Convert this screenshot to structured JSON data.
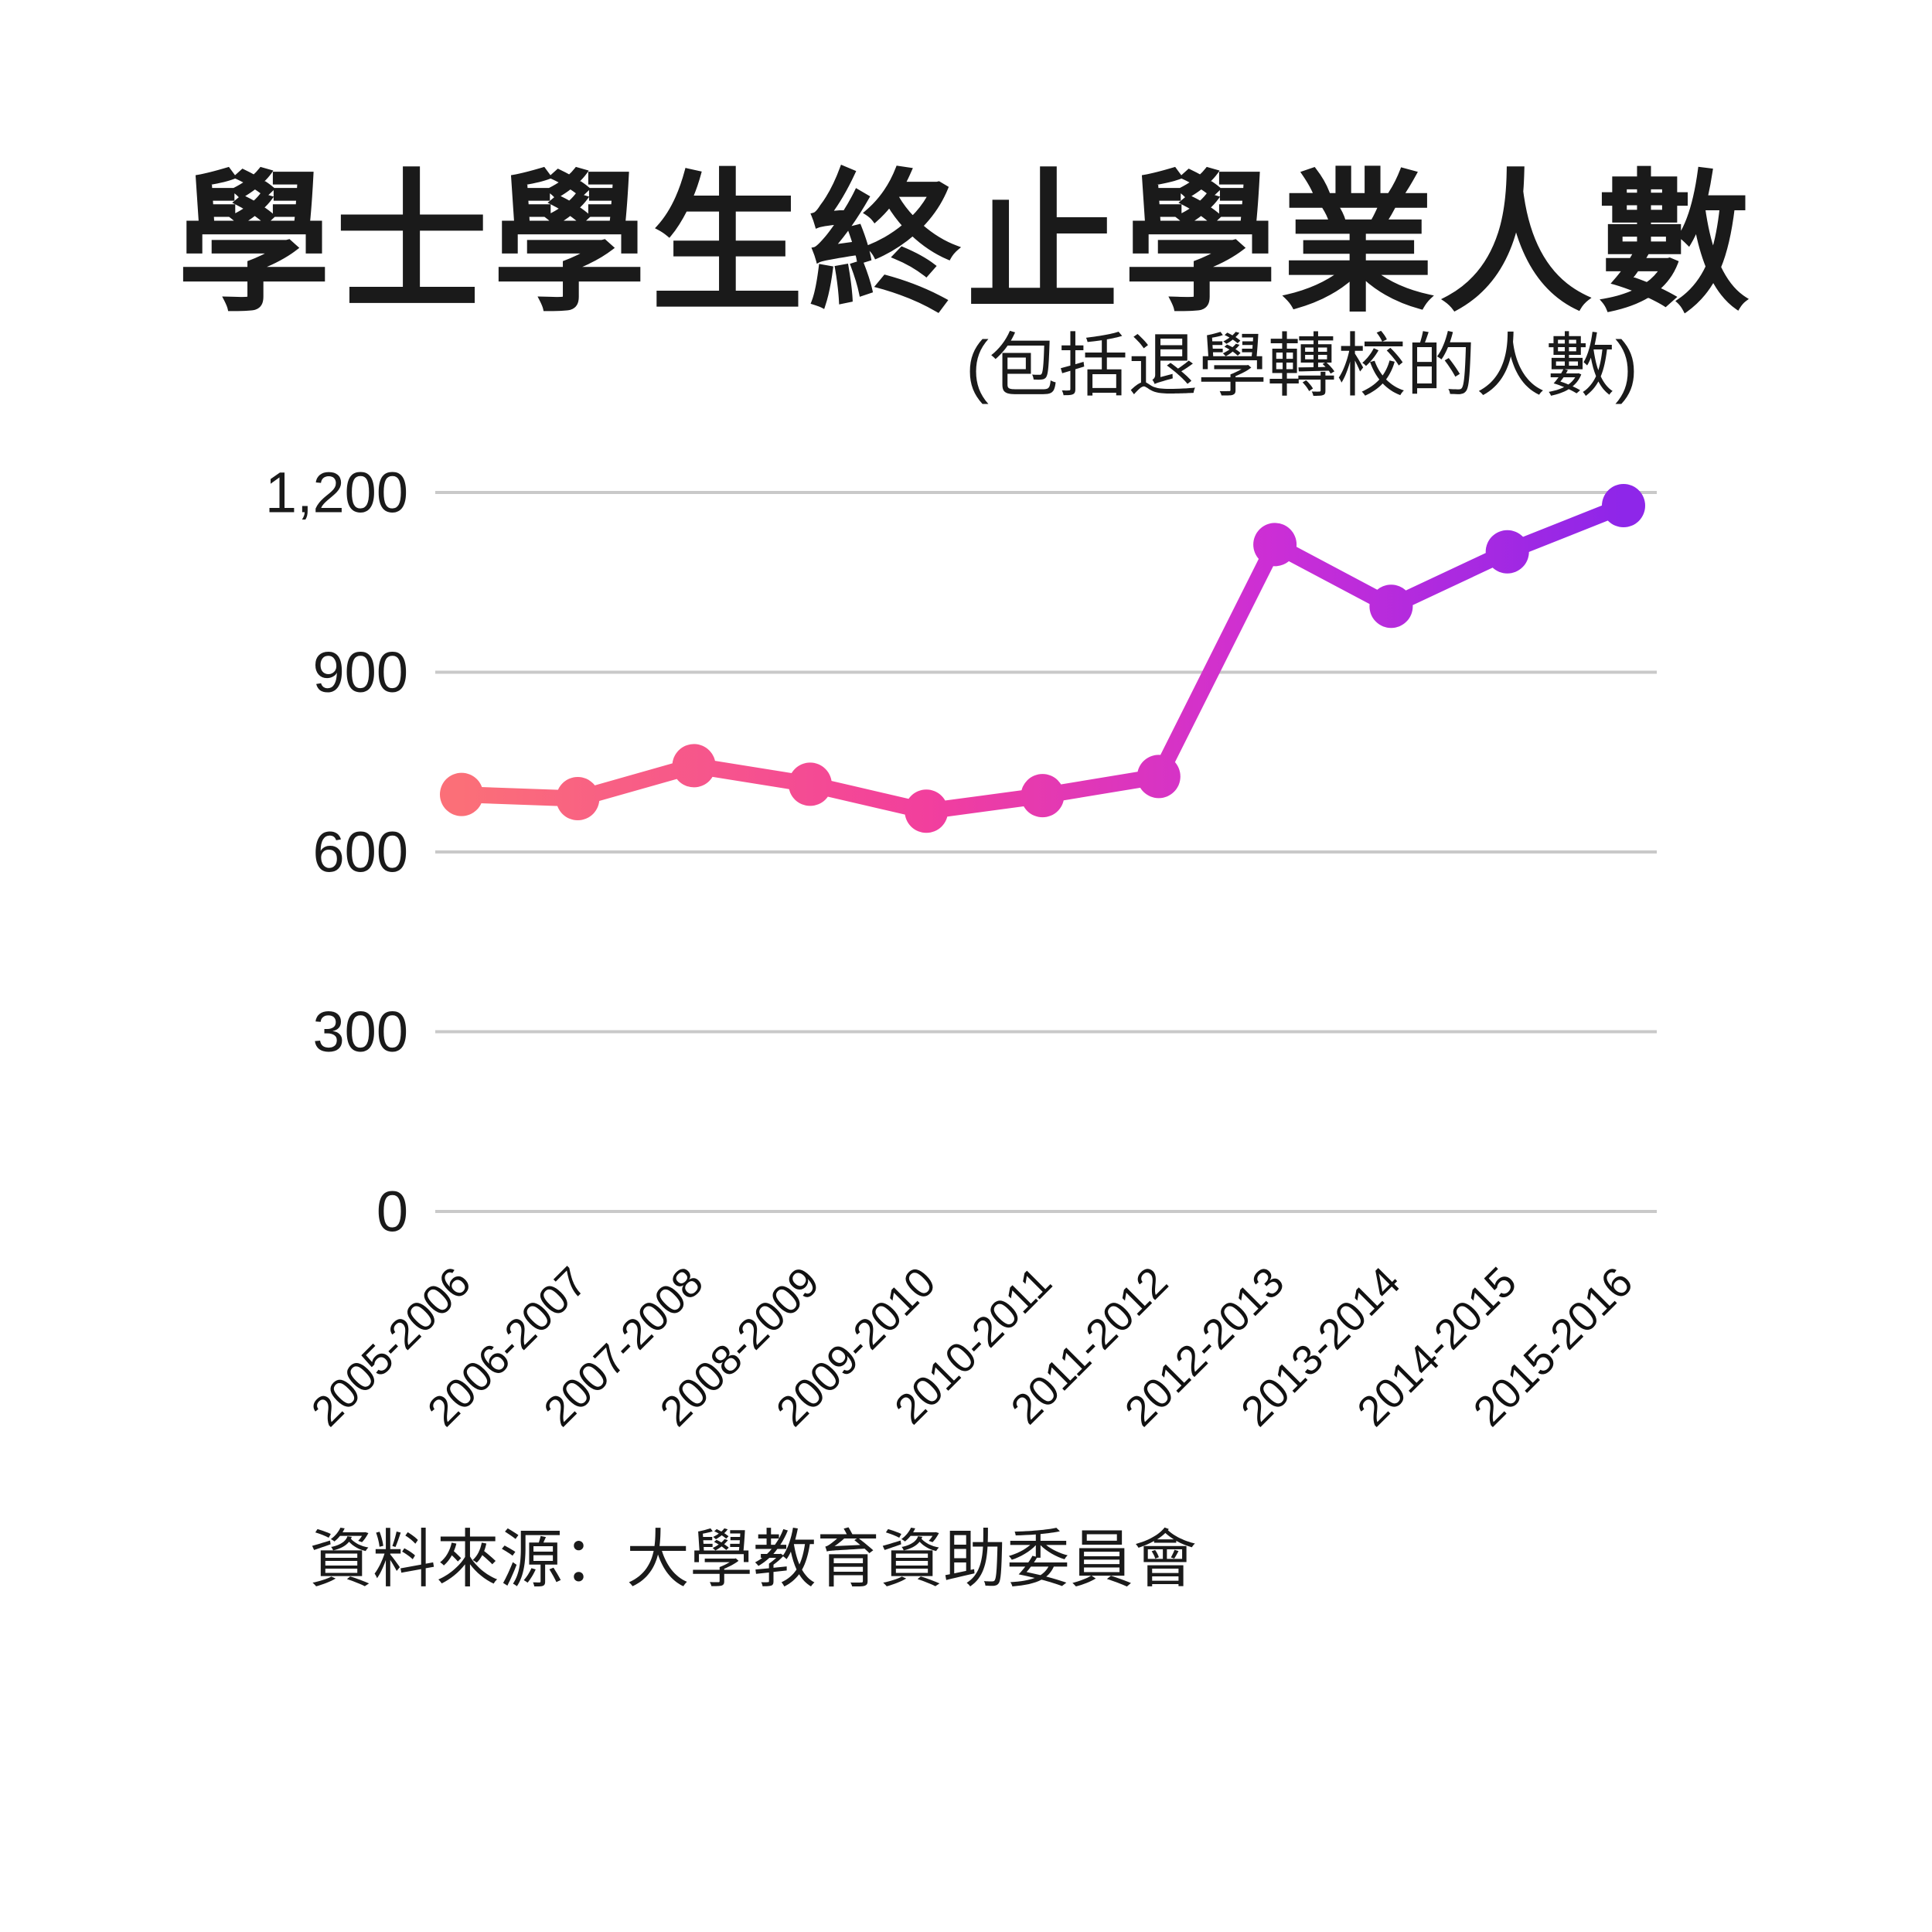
{
  "title": "學士學生終止學業人數",
  "subtitle": "(包括退學轉校的人數)",
  "source_note": "資料來源：大學教育資助委員會",
  "colors": {
    "background": "#ffffff",
    "text": "#1a1a1a",
    "gridline": "#c9c9c9",
    "line_start": "#fb6f78",
    "line_pink": "#f23f9d",
    "line_magenta": "#cb2ed6",
    "line_end": "#8e26e9"
  },
  "chart_data": {
    "type": "line",
    "title": "學士學生終止學業人數",
    "subtitle": "(包括退學轉校的人數)",
    "xlabel": "",
    "ylabel": "",
    "categories": [
      "2005-2006",
      "2006-2007",
      "2007-2008",
      "2008-2009",
      "2009-2010",
      "2010-2011",
      "2011-2012",
      "2012-2013",
      "2013-2014",
      "2014-2015",
      "2015-2016"
    ],
    "values": [
      696,
      689,
      744,
      713,
      668,
      694,
      726,
      1113,
      1010,
      1101,
      1178
    ],
    "ylim": [
      0,
      1200
    ],
    "yticks": [
      0,
      300,
      600,
      900,
      1200
    ],
    "ytick_labels": [
      "0",
      "300",
      "600",
      "900",
      "1,200"
    ],
    "grid": true,
    "legend_position": "none",
    "marker": "circle",
    "line_gradient": [
      "#fb6f78",
      "#f23f9d",
      "#cb2ed6",
      "#8e26e9"
    ],
    "gradient_offsets": [
      0,
      0.4,
      0.7,
      1
    ],
    "source": "資料來源：大學教育資助委員會"
  }
}
